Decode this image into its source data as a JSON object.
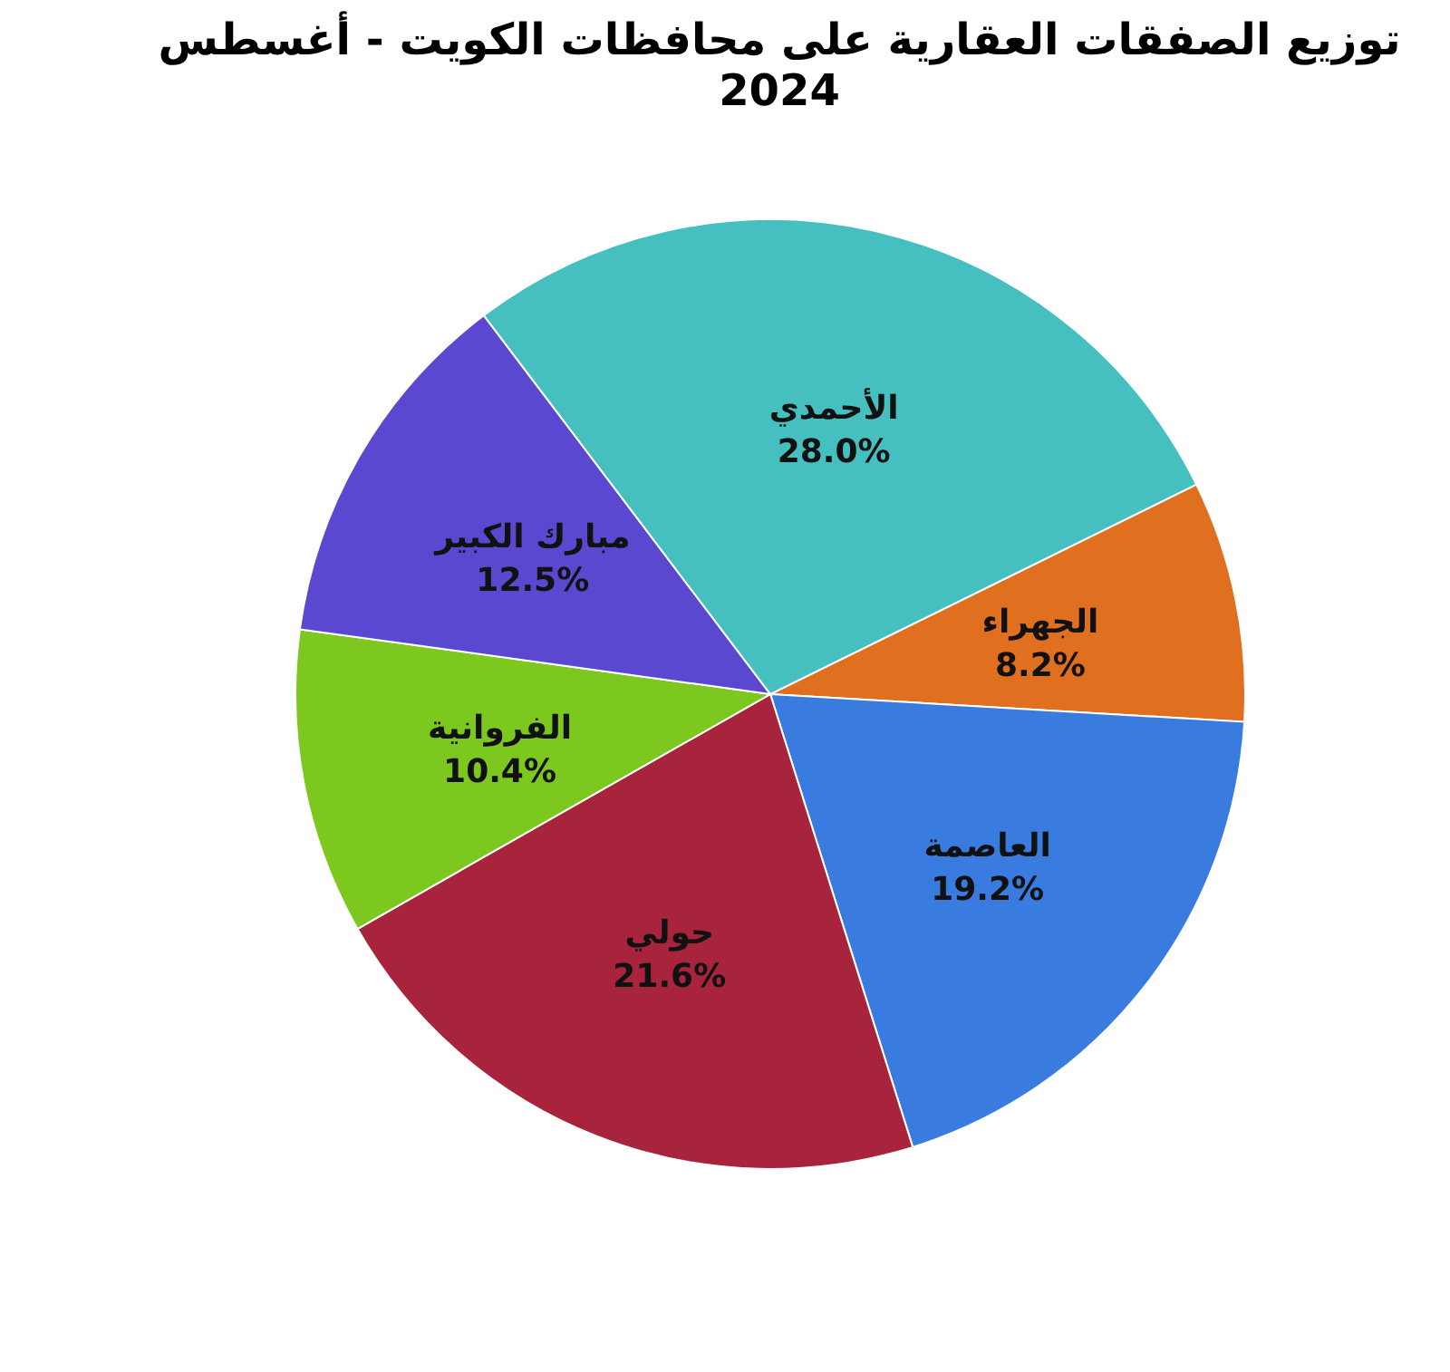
{
  "chart_data": {
    "type": "pie",
    "title": "توزيع الصفقات العقارية على محافظات الكويت - أغسطس 2024",
    "categories": [
      "الجهراء",
      "العاصمة",
      "حولي",
      "الفروانية",
      "مبارك الكبير",
      "الأحمدي"
    ],
    "values": [
      8.2,
      19.2,
      21.6,
      10.4,
      12.5,
      28.0
    ],
    "colors": [
      "#e07020",
      "#3a7be0",
      "#a8243c",
      "#7dc81e",
      "#5a48d0",
      "#45bfbf"
    ],
    "value_labels": [
      "8.2%",
      "19.2%",
      "21.6%",
      "10.4%",
      "12.5%",
      "28.0%"
    ],
    "legend": false
  }
}
